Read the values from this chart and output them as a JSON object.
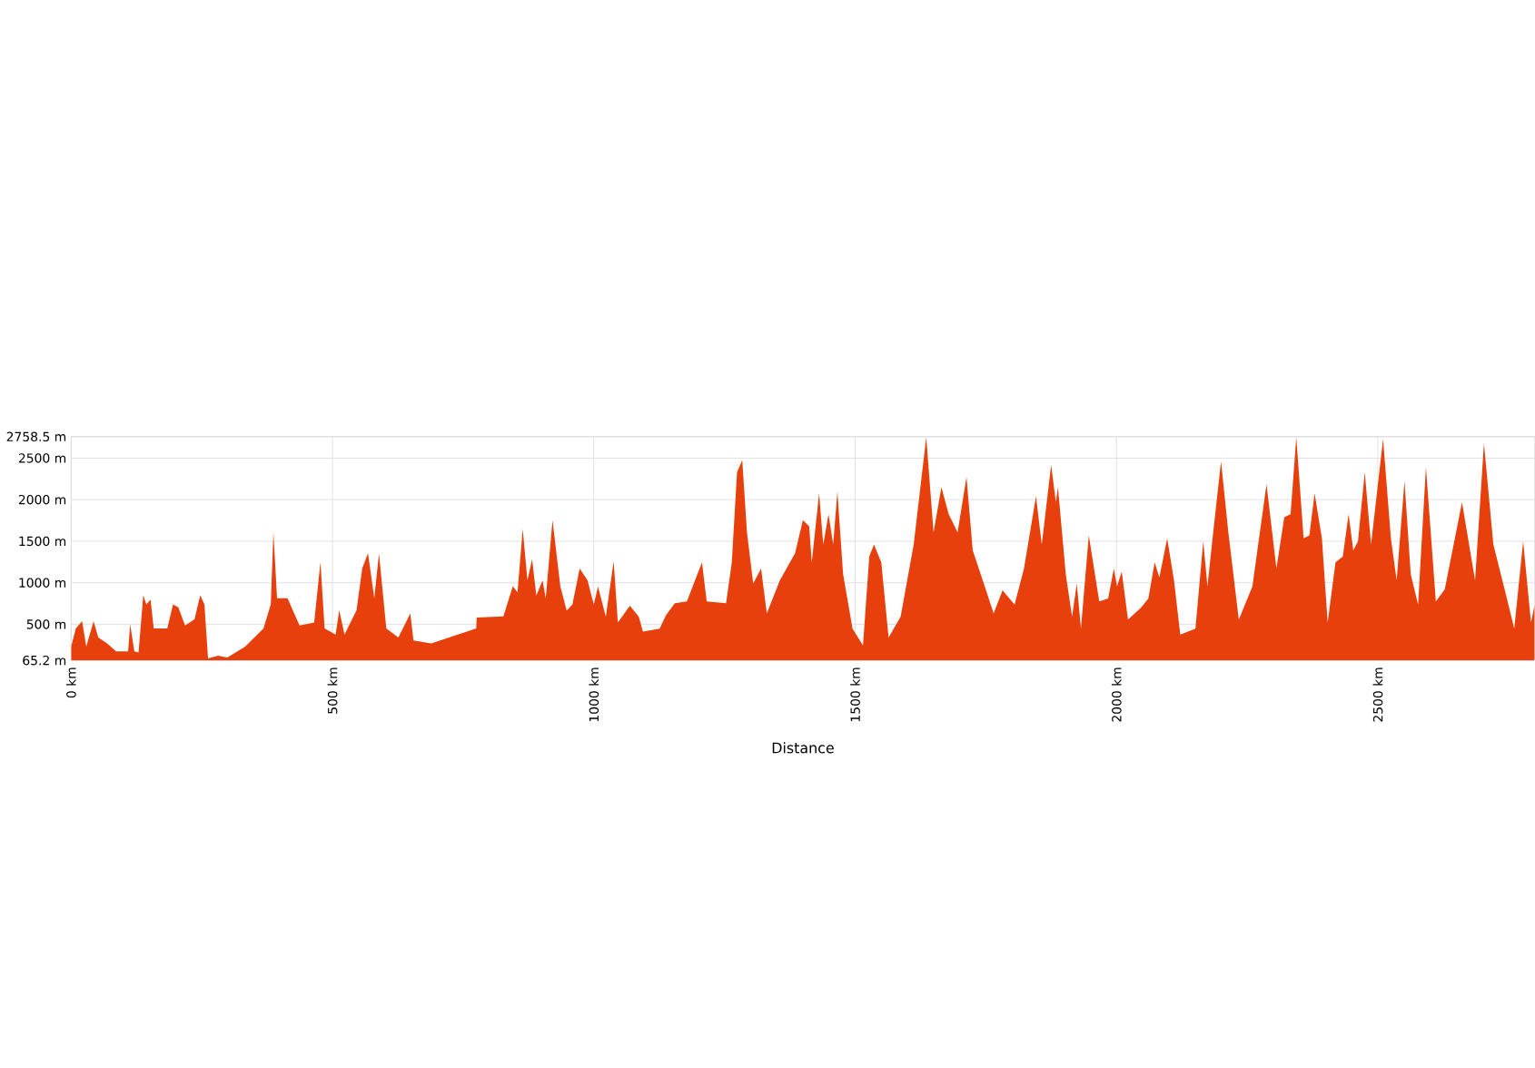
{
  "chart_data": {
    "type": "area",
    "xlabel": "Distance",
    "color": "#e8400c",
    "grid": true,
    "xlim": [
      0,
      2800
    ],
    "ylim": [
      65.2,
      2758.5
    ],
    "xticks": [
      {
        "value": 0,
        "label": "0 km"
      },
      {
        "value": 500,
        "label": "500 km"
      },
      {
        "value": 1000,
        "label": "1000 km"
      },
      {
        "value": 1500,
        "label": "1500 km"
      },
      {
        "value": 2000,
        "label": "2000 km"
      },
      {
        "value": 2500,
        "label": "2500 km"
      }
    ],
    "yticks": [
      {
        "value": 65.2,
        "label": "65.2 m"
      },
      {
        "value": 500,
        "label": "500 m"
      },
      {
        "value": 1000,
        "label": "1000 m"
      },
      {
        "value": 1500,
        "label": "1500 m"
      },
      {
        "value": 2000,
        "label": "2000 m"
      },
      {
        "value": 2500,
        "label": "2500 m"
      },
      {
        "value": 2758.5,
        "label": "2758.5 m"
      }
    ],
    "x": [
      0,
      9,
      21,
      29,
      43,
      52,
      69,
      86,
      109,
      113,
      121,
      129,
      138,
      144,
      152,
      158,
      184,
      195,
      205,
      218,
      236,
      247,
      255,
      262,
      281,
      299,
      333,
      368,
      382,
      387,
      394,
      414,
      437,
      465,
      477,
      485,
      506,
      513,
      523,
      546,
      557,
      568,
      580,
      589,
      603,
      626,
      649,
      655,
      689,
      775,
      776,
      827,
      845,
      854,
      864,
      873,
      882,
      890,
      902,
      908,
      921,
      936,
      948,
      959,
      973,
      988,
      1000,
      1008,
      1023,
      1038,
      1046,
      1069,
      1086,
      1094,
      1126,
      1138,
      1155,
      1178,
      1207,
      1216,
      1253,
      1264,
      1274,
      1284,
      1293,
      1305,
      1320,
      1331,
      1356,
      1385,
      1400,
      1412,
      1417,
      1431,
      1439,
      1449,
      1458,
      1466,
      1477,
      1495,
      1515,
      1527,
      1536,
      1550,
      1564,
      1587,
      1612,
      1636,
      1650,
      1665,
      1679,
      1696,
      1713,
      1725,
      1748,
      1765,
      1782,
      1805,
      1823,
      1846,
      1857,
      1875,
      1884,
      1888,
      1903,
      1915,
      1924,
      1932,
      1947,
      1967,
      1984,
      1995,
      2001,
      2010,
      2022,
      2047,
      2061,
      2073,
      2082,
      2097,
      2110,
      2122,
      2151,
      2166,
      2174,
      2185,
      2200,
      2214,
      2234,
      2260,
      2287,
      2306,
      2321,
      2333,
      2344,
      2358,
      2369,
      2379,
      2393,
      2404,
      2419,
      2433,
      2444,
      2453,
      2462,
      2475,
      2487,
      2510,
      2525,
      2536,
      2551,
      2563,
      2577,
      2592,
      2611,
      2628,
      2661,
      2686,
      2703,
      2721,
      2744,
      2761,
      2778,
      2793,
      2800
    ],
    "values": [
      232,
      449,
      536,
      232,
      536,
      340,
      268,
      174,
      174,
      500,
      174,
      160,
      848,
      739,
      797,
      449,
      449,
      739,
      703,
      486,
      558,
      848,
      739,
      90,
      123,
      100,
      232,
      449,
      739,
      1609,
      812,
      812,
      486,
      522,
      1247,
      449,
      377,
      667,
      377,
      667,
      1174,
      1355,
      812,
      1355,
      449,
      340,
      630,
      304,
      268,
      449,
      580,
      594,
      957,
      884,
      1646,
      1029,
      1283,
      847,
      1028,
      810,
      1752,
      955,
      666,
      738,
      1172,
      1028,
      738,
      955,
      593,
      1259,
      521,
      724,
      593,
      412,
      448,
      608,
      753,
      774,
      1245,
      774,
      753,
      1245,
      2331,
      2476,
      1607,
      991,
      1172,
      630,
      1028,
      1353,
      1752,
      1679,
      1245,
      2077,
      1462,
      1824,
      1462,
      2099,
      1100,
      448,
      246,
      1317,
      1462,
      1245,
      340,
      593,
      1462,
      2751,
      1607,
      2150,
      1824,
      1607,
      2273,
      1390,
      955,
      630,
      910,
      738,
      1172,
      2041,
      1462,
      2418,
      1969,
      2150,
      1100,
      593,
      991,
      448,
      1571,
      774,
      810,
      1172,
      955,
      1136,
      557,
      702,
      810,
      1245,
      1064,
      1534,
      1028,
      376,
      448,
      1498,
      955,
      1607,
      2461,
      1607,
      557,
      955,
      2186,
      1172,
      1788,
      1824,
      2750,
      1534,
      1571,
      2077,
      1534,
      521,
      1245,
      1317,
      1824,
      1390,
      1498,
      2331,
      1462,
      2729,
      1534,
      1028,
      2222,
      1100,
      738,
      2389,
      774,
      919,
      1969,
      1028,
      2678,
      1462,
      883,
      448,
      1498,
      521,
      738
    ]
  }
}
